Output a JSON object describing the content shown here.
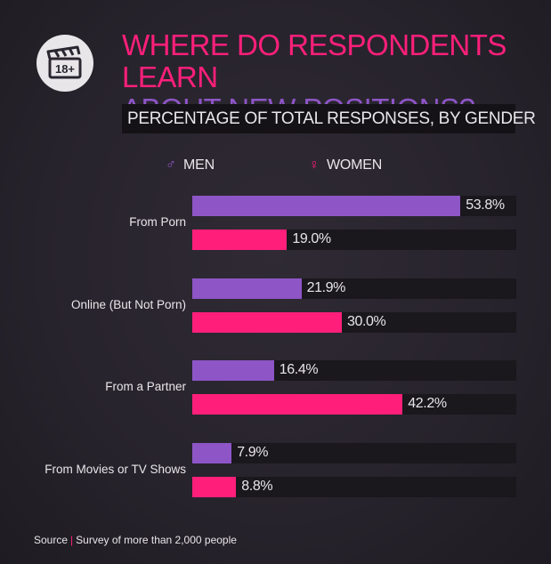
{
  "title_line1": "WHERE DO RESPONDENTS LEARN",
  "title_line2": "ABOUT NEW POSITIONS?",
  "subtitle": "PERCENTAGE OF TOTAL RESPONSES, BY GENDER",
  "icon_badge_text": "18+",
  "legend": {
    "men_symbol": "♂",
    "men_label": "MEN",
    "women_symbol": "♀",
    "women_label": "WOMEN"
  },
  "colors": {
    "men": "#8e55c7",
    "women": "#ff1f7a",
    "icon_text": "#2a2630"
  },
  "source": {
    "label": "Source",
    "separator": "|",
    "text": "Survey of more than 2,000 people"
  },
  "chart_data": {
    "type": "bar",
    "orientation": "horizontal",
    "title": "WHERE DO RESPONDENTS LEARN ABOUT NEW POSITIONS?",
    "subtitle": "PERCENTAGE OF TOTAL RESPONSES, BY GENDER",
    "categories": [
      "From Porn",
      "Online (But Not Porn)",
      "From a Partner",
      "From Movies or TV Shows"
    ],
    "series": [
      {
        "name": "MEN",
        "values": [
          53.8,
          21.9,
          16.4,
          7.9
        ],
        "labels": [
          "53.8%",
          "21.9%",
          "16.4%",
          "7.9%"
        ]
      },
      {
        "name": "WOMEN",
        "values": [
          19.0,
          30.0,
          42.2,
          8.8
        ],
        "labels": [
          "19.0%",
          "30.0%",
          "42.2%",
          "8.8%"
        ]
      }
    ],
    "xlim": [
      0,
      65
    ],
    "legend_position": "top",
    "grid": false
  }
}
